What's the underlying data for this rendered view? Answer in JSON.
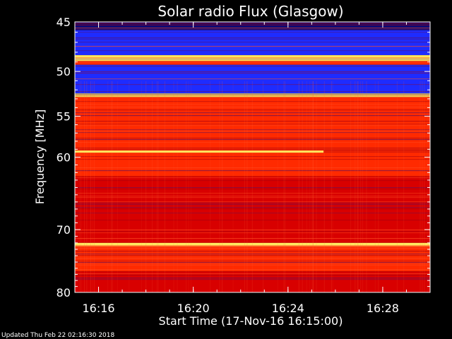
{
  "chart_data": {
    "type": "heatmap",
    "title": "Solar radio Flux (Glasgow)",
    "ylabel": "Frequency [MHz]",
    "xlabel": "Start Time (17-Nov-16 16:15:00)",
    "ylim": [
      80,
      45
    ],
    "y_scale": "log",
    "y_ticks": [
      {
        "value": 45,
        "label": "45"
      },
      {
        "value": 50,
        "label": "50"
      },
      {
        "value": 55,
        "label": "55"
      },
      {
        "value": 60,
        "label": "60"
      },
      {
        "value": 70,
        "label": "70"
      },
      {
        "value": 80,
        "label": "80"
      }
    ],
    "xlim": [
      "16:15:00",
      "16:30:00"
    ],
    "x_ticks": [
      {
        "value": "16:16",
        "label": "16:16"
      },
      {
        "value": "16:20",
        "label": "16:20"
      },
      {
        "value": "16:24",
        "label": "16:24"
      },
      {
        "value": "16:28",
        "label": "16:28"
      }
    ],
    "colors": {
      "background": "#000000",
      "low": "#0a0a78",
      "mid_low": "#1e2cff",
      "mid": "#d80000",
      "high": "#ff2a00",
      "peak": "#ffe860"
    },
    "bands": [
      {
        "from": 45.0,
        "to": 45.8,
        "level": "low"
      },
      {
        "from": 45.8,
        "to": 48.3,
        "level": "mid_low"
      },
      {
        "from": 48.3,
        "to": 48.9,
        "level": "peak"
      },
      {
        "from": 48.9,
        "to": 49.3,
        "level": "high"
      },
      {
        "from": 49.3,
        "to": 52.4,
        "level": "mid_low"
      },
      {
        "from": 52.4,
        "to": 52.8,
        "level": "peak"
      },
      {
        "from": 52.8,
        "to": 62.5,
        "level": "high"
      },
      {
        "from": 62.5,
        "to": 72.0,
        "level": "mid"
      },
      {
        "from": 72.0,
        "to": 72.5,
        "level": "peak"
      },
      {
        "from": 72.5,
        "to": 76.5,
        "level": "high"
      },
      {
        "from": 76.5,
        "to": 80.0,
        "level": "mid"
      }
    ],
    "bursts": [
      {
        "freq": 59.3,
        "start": "16:15:00",
        "end": "16:25:30"
      }
    ]
  },
  "footer": {
    "updated": "Updated Thu Feb 22 02:16:30 2018"
  }
}
